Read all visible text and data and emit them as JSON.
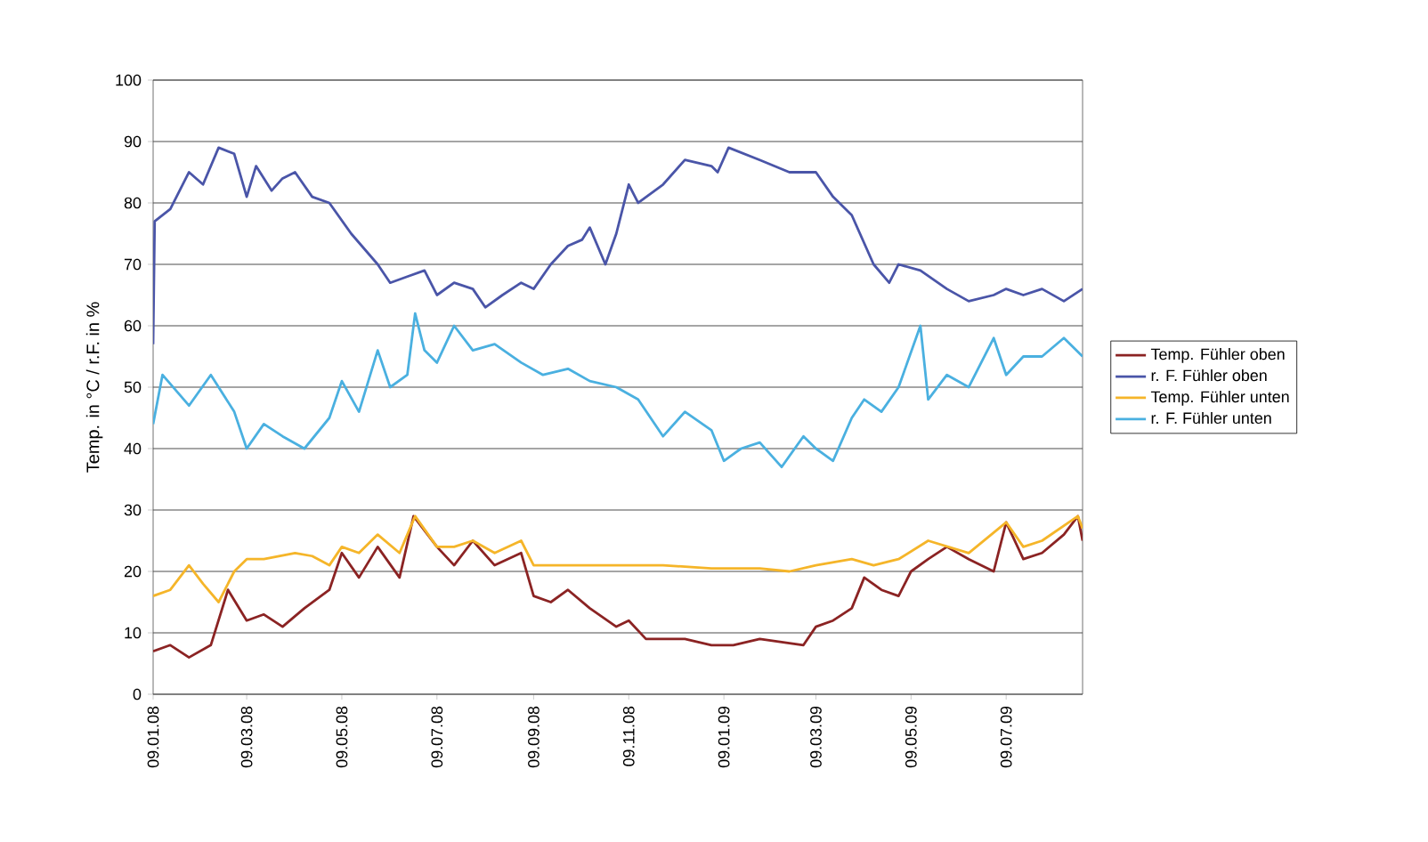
{
  "chart_data": {
    "type": "line",
    "ylabel": "Temp. in °C / r.F. in %",
    "xlim": [
      "2008-01-09",
      "2009-08-27"
    ],
    "ylim": [
      0,
      100
    ],
    "xticks": [
      {
        "value": "2008-01-09",
        "label": "09.01.08"
      },
      {
        "value": "2008-03-09",
        "label": "09.03.08"
      },
      {
        "value": "2008-05-09",
        "label": "09.05.08"
      },
      {
        "value": "2008-07-09",
        "label": "09.07.08"
      },
      {
        "value": "2008-09-09",
        "label": "09.09.08"
      },
      {
        "value": "2008-11-09",
        "label": "09.11.08"
      },
      {
        "value": "2009-01-09",
        "label": "09.01.09"
      },
      {
        "value": "2009-03-09",
        "label": "09.03.09"
      },
      {
        "value": "2009-05-09",
        "label": "09.05.09"
      },
      {
        "value": "2009-07-09",
        "label": "09.07.09"
      }
    ],
    "yticks": [
      0,
      10,
      20,
      30,
      40,
      50,
      60,
      70,
      80,
      90,
      100
    ],
    "grid": "y",
    "legend": "right",
    "marker": "none",
    "line_style": "solid",
    "series": [
      {
        "name": "Temp. Fühler oben",
        "color": "#8b2323",
        "x": [
          "2008-01-09",
          "2008-01-20",
          "2008-02-01",
          "2008-02-15",
          "2008-02-26",
          "2008-03-09",
          "2008-03-20",
          "2008-04-01",
          "2008-04-15",
          "2008-05-01",
          "2008-05-09",
          "2008-05-20",
          "2008-06-01",
          "2008-06-15",
          "2008-06-24",
          "2008-07-09",
          "2008-07-20",
          "2008-08-01",
          "2008-08-15",
          "2008-09-01",
          "2008-09-09",
          "2008-09-20",
          "2008-10-01",
          "2008-10-15",
          "2008-11-01",
          "2008-11-09",
          "2008-11-20",
          "2008-12-01",
          "2008-12-15",
          "2009-01-01",
          "2009-01-15",
          "2009-02-01",
          "2009-02-15",
          "2009-03-01",
          "2009-03-09",
          "2009-03-20",
          "2009-04-01",
          "2009-04-09",
          "2009-04-20",
          "2009-05-01",
          "2009-05-09",
          "2009-05-20",
          "2009-06-01",
          "2009-06-15",
          "2009-07-01",
          "2009-07-09",
          "2009-07-20",
          "2009-08-01",
          "2009-08-15",
          "2009-08-24",
          "2009-08-27"
        ],
        "values": [
          7,
          8,
          6,
          8,
          17,
          12,
          13,
          11,
          14,
          17,
          23,
          19,
          24,
          19,
          29,
          24,
          21,
          25,
          21,
          23,
          16,
          15,
          17,
          14,
          11,
          12,
          9,
          9,
          9,
          8,
          8,
          9,
          8.5,
          8,
          11,
          12,
          14,
          19,
          17,
          16,
          20,
          22,
          24,
          22,
          20,
          28,
          22,
          23,
          26,
          29,
          25
        ]
      },
      {
        "name": "r. F. Fühler oben",
        "color": "#4a55a8",
        "x": [
          "2008-01-09",
          "2008-01-10",
          "2008-01-20",
          "2008-02-01",
          "2008-02-10",
          "2008-02-20",
          "2008-03-01",
          "2008-03-09",
          "2008-03-15",
          "2008-03-25",
          "2008-04-01",
          "2008-04-09",
          "2008-04-20",
          "2008-05-01",
          "2008-05-15",
          "2008-06-01",
          "2008-06-09",
          "2008-06-20",
          "2008-07-01",
          "2008-07-09",
          "2008-07-20",
          "2008-08-01",
          "2008-08-09",
          "2008-08-20",
          "2008-09-01",
          "2008-09-09",
          "2008-09-20",
          "2008-10-01",
          "2008-10-10",
          "2008-10-15",
          "2008-10-25",
          "2008-11-01",
          "2008-11-09",
          "2008-11-15",
          "2008-12-01",
          "2008-12-15",
          "2009-01-01",
          "2009-01-05",
          "2009-01-12",
          "2009-02-01",
          "2009-02-20",
          "2009-03-01",
          "2009-03-09",
          "2009-03-20",
          "2009-04-01",
          "2009-04-15",
          "2009-04-25",
          "2009-05-01",
          "2009-05-15",
          "2009-06-01",
          "2009-06-15",
          "2009-07-01",
          "2009-07-09",
          "2009-07-20",
          "2009-08-01",
          "2009-08-15",
          "2009-08-27"
        ],
        "values": [
          57,
          77,
          79,
          85,
          83,
          89,
          88,
          81,
          86,
          82,
          84,
          85,
          81,
          80,
          75,
          70,
          67,
          68,
          69,
          65,
          67,
          66,
          63,
          65,
          67,
          66,
          70,
          73,
          74,
          76,
          70,
          75,
          83,
          80,
          83,
          87,
          86,
          85,
          89,
          87,
          85,
          85,
          85,
          81,
          78,
          70,
          67,
          70,
          69,
          66,
          64,
          65,
          66,
          65,
          66,
          64,
          66
        ]
      },
      {
        "name": "Temp. Fühler unten",
        "color": "#f5b529",
        "x": [
          "2008-01-09",
          "2008-01-20",
          "2008-02-01",
          "2008-02-10",
          "2008-02-20",
          "2008-03-01",
          "2008-03-09",
          "2008-03-20",
          "2008-04-09",
          "2008-04-20",
          "2008-05-01",
          "2008-05-09",
          "2008-05-20",
          "2008-06-01",
          "2008-06-15",
          "2008-06-25",
          "2008-07-09",
          "2008-07-20",
          "2008-08-01",
          "2008-08-15",
          "2008-09-01",
          "2008-09-09",
          "2008-10-01",
          "2008-11-01",
          "2008-12-01",
          "2009-01-01",
          "2009-02-01",
          "2009-02-20",
          "2009-03-09",
          "2009-04-01",
          "2009-04-15",
          "2009-05-01",
          "2009-05-20",
          "2009-06-15",
          "2009-07-09",
          "2009-07-20",
          "2009-08-01",
          "2009-08-24",
          "2009-08-27"
        ],
        "values": [
          16,
          17,
          21,
          18,
          15,
          20,
          22,
          22,
          23,
          22.5,
          21,
          24,
          23,
          26,
          23,
          29,
          24,
          24,
          25,
          23,
          25,
          21,
          21,
          21,
          21,
          20.5,
          20.5,
          20,
          21,
          22,
          21,
          22,
          25,
          23,
          28,
          24,
          25,
          29,
          27
        ]
      },
      {
        "name": "r. F. Fühler unten",
        "color": "#4ab0e0",
        "x": [
          "2008-01-09",
          "2008-01-15",
          "2008-02-01",
          "2008-02-15",
          "2008-03-01",
          "2008-03-09",
          "2008-03-20",
          "2008-04-01",
          "2008-04-15",
          "2008-05-01",
          "2008-05-09",
          "2008-05-20",
          "2008-06-01",
          "2008-06-09",
          "2008-06-20",
          "2008-06-25",
          "2008-07-01",
          "2008-07-09",
          "2008-07-20",
          "2008-08-01",
          "2008-08-15",
          "2008-09-01",
          "2008-09-15",
          "2008-10-01",
          "2008-10-15",
          "2008-11-01",
          "2008-11-15",
          "2008-12-01",
          "2008-12-15",
          "2009-01-01",
          "2009-01-09",
          "2009-01-20",
          "2009-02-01",
          "2009-02-15",
          "2009-03-01",
          "2009-03-09",
          "2009-03-20",
          "2009-04-01",
          "2009-04-09",
          "2009-04-20",
          "2009-05-01",
          "2009-05-15",
          "2009-05-20",
          "2009-06-01",
          "2009-06-15",
          "2009-07-01",
          "2009-07-09",
          "2009-07-20",
          "2009-08-01",
          "2009-08-15",
          "2009-08-27"
        ],
        "values": [
          44,
          52,
          47,
          52,
          46,
          40,
          44,
          42,
          40,
          45,
          51,
          46,
          56,
          50,
          52,
          62,
          56,
          54,
          60,
          56,
          57,
          54,
          52,
          53,
          51,
          50,
          48,
          42,
          46,
          43,
          38,
          40,
          41,
          37,
          42,
          40,
          38,
          45,
          48,
          46,
          50,
          60,
          48,
          52,
          50,
          58,
          52,
          55,
          55,
          58,
          55
        ]
      }
    ]
  }
}
